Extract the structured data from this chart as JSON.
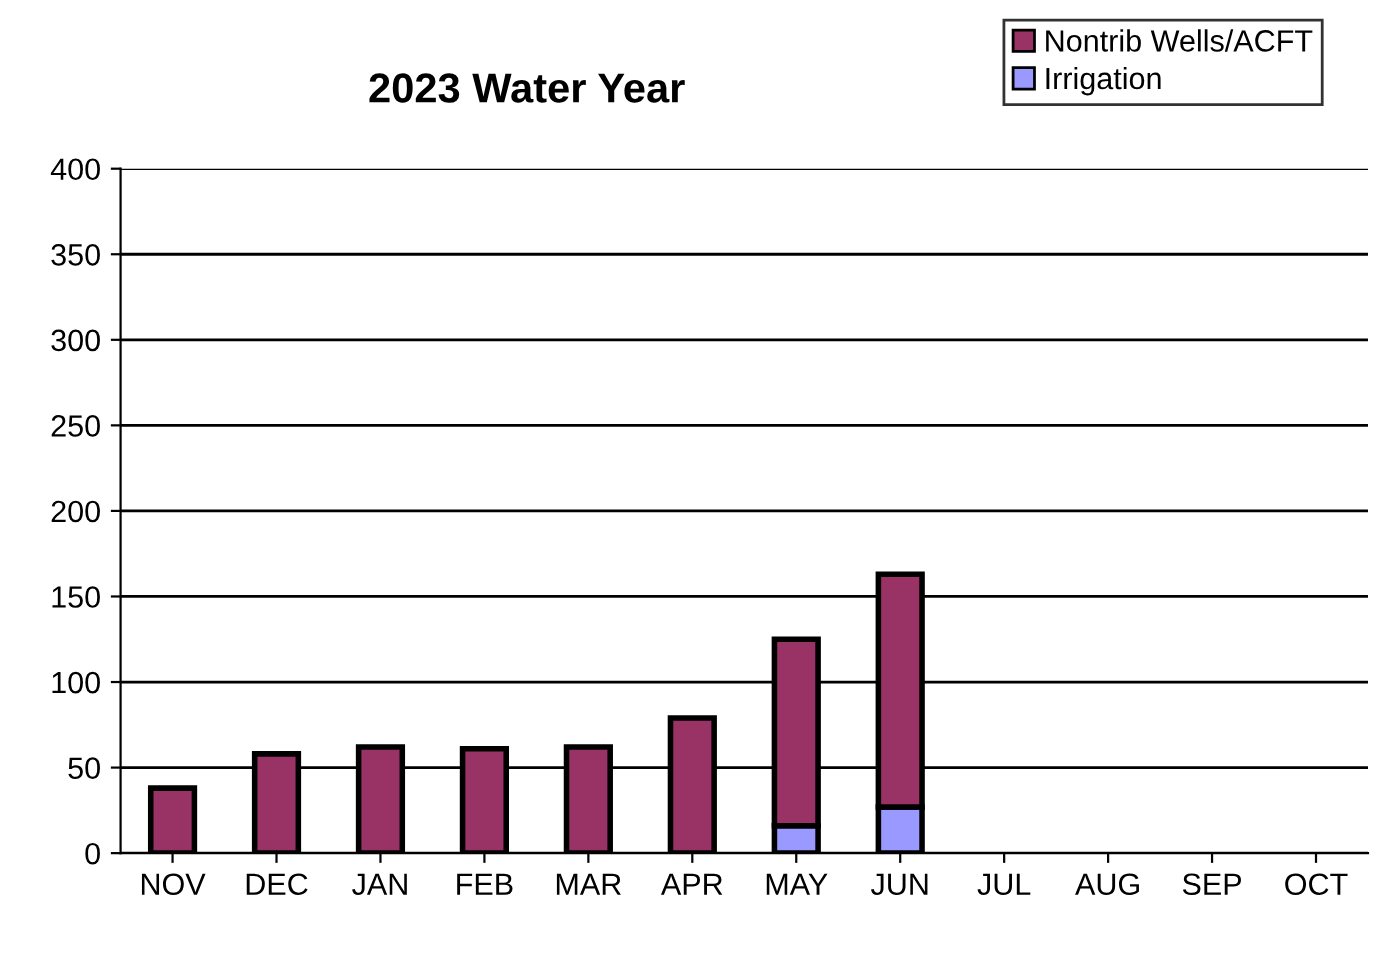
{
  "chart_data": {
    "type": "bar",
    "title": "2023 Water Year",
    "stacked": true,
    "categories": [
      "NOV",
      "DEC",
      "JAN",
      "FEB",
      "MAR",
      "APR",
      "MAY",
      "JUN",
      "JUL",
      "AUG",
      "SEP",
      "OCT"
    ],
    "series": [
      {
        "name": "Irrigation",
        "color": "#9999ff",
        "values": [
          0,
          0,
          0,
          0,
          0,
          0,
          16,
          27,
          null,
          null,
          null,
          null
        ]
      },
      {
        "name": "Nontrib Wells/ACFT",
        "color": "#993366",
        "values": [
          38,
          58,
          62,
          61,
          62,
          79,
          109,
          136,
          null,
          null,
          null,
          null
        ]
      }
    ],
    "ylim": [
      0,
      400
    ],
    "yticks": [
      0,
      50,
      100,
      150,
      200,
      250,
      300,
      350,
      400
    ],
    "grid": "y",
    "legend": "top right"
  }
}
